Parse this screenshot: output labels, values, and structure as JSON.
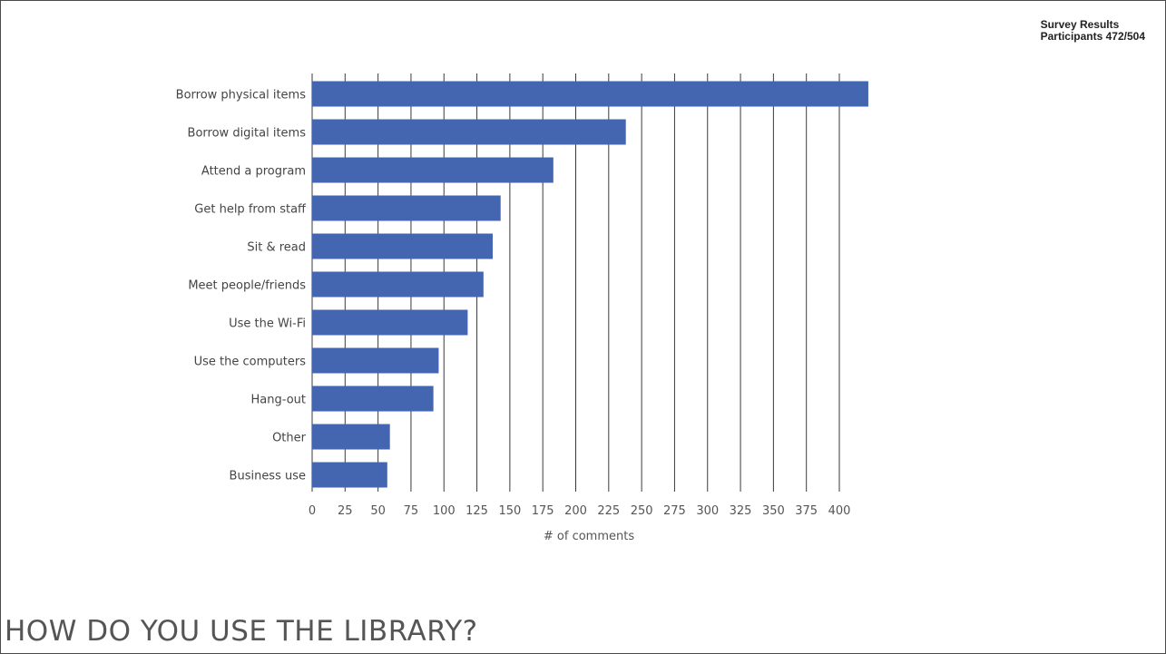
{
  "badge": {
    "line1": "Survey Results",
    "line2": "Participants 472/504"
  },
  "slide_title": "HOW DO YOU USE THE LIBRARY?",
  "colors": {
    "bar": "#4466b0",
    "grid": "#3a3a3a",
    "text": "#444444"
  },
  "chart_data": {
    "type": "bar",
    "orientation": "horizontal",
    "categories": [
      "Borrow physical items",
      "Borrow digital items",
      "Attend a program",
      "Get help from staff",
      "Sit & read",
      "Meet people/friends",
      "Use the Wi-Fi",
      "Use the computers",
      "Hang-out",
      "Other",
      "Business use"
    ],
    "values": [
      422,
      238,
      183,
      143,
      137,
      130,
      118,
      96,
      92,
      59,
      57
    ],
    "xlabel": "# of comments",
    "ylabel": "",
    "xlim": [
      0,
      420
    ],
    "xticks": [
      0,
      25,
      50,
      75,
      100,
      125,
      150,
      175,
      200,
      225,
      250,
      275,
      300,
      325,
      350,
      375,
      400
    ],
    "grid": "vertical",
    "legend": "none"
  }
}
